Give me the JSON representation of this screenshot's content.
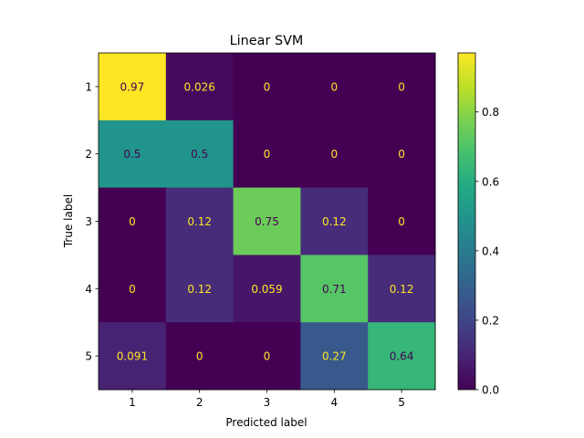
{
  "chart_data": {
    "type": "heatmap",
    "title": "Linear SVM",
    "xlabel": "Predicted label",
    "ylabel": "True label",
    "x_categories": [
      "1",
      "2",
      "3",
      "4",
      "5"
    ],
    "y_categories": [
      "1",
      "2",
      "3",
      "4",
      "5"
    ],
    "values": [
      [
        0.97,
        0.026,
        0,
        0,
        0
      ],
      [
        0.5,
        0.5,
        0,
        0,
        0
      ],
      [
        0,
        0.12,
        0.75,
        0.12,
        0
      ],
      [
        0,
        0.12,
        0.059,
        0.71,
        0.12
      ],
      [
        0.091,
        0,
        0,
        0.27,
        0.64
      ]
    ],
    "cell_labels": [
      [
        "0.97",
        "0.026",
        "0",
        "0",
        "0"
      ],
      [
        "0.5",
        "0.5",
        "0",
        "0",
        "0"
      ],
      [
        "0",
        "0.12",
        "0.75",
        "0.12",
        "0"
      ],
      [
        "0",
        "0.12",
        "0.059",
        "0.71",
        "0.12"
      ],
      [
        "0.091",
        "0",
        "0",
        "0.27",
        "0.64"
      ]
    ],
    "colormap": "viridis",
    "color_range": [
      0,
      0.97
    ],
    "colorbar": {
      "ticks": [
        0.0,
        0.2,
        0.4,
        0.6,
        0.8
      ],
      "tick_labels": [
        "0.0",
        "0.2",
        "0.4",
        "0.6",
        "0.8"
      ]
    },
    "text_colors": {
      "low": "#fde725",
      "high": "#440154"
    },
    "grid": false
  }
}
